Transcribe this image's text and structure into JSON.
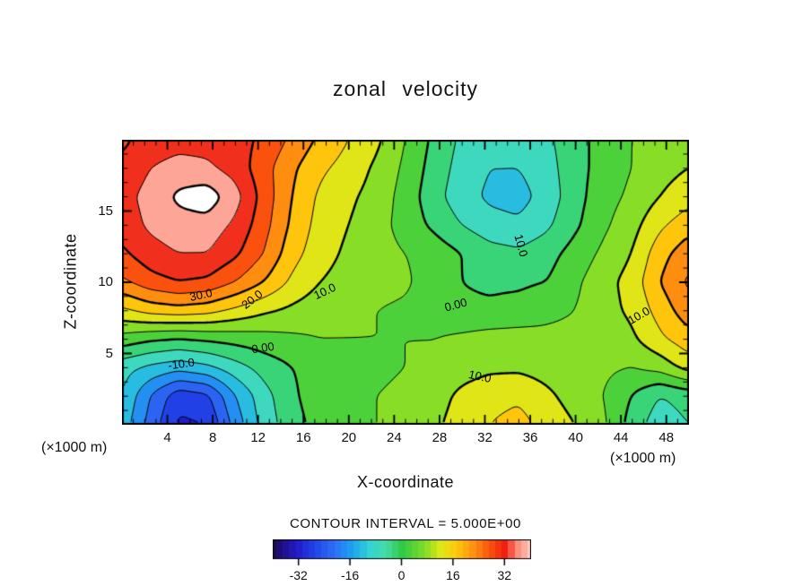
{
  "title": "zonal velocity",
  "axes": {
    "xlabel": "X-coordinate",
    "ylabel": "Z-coordinate",
    "unit_left": "(×1000 m)",
    "unit_right": "(×1000 m)",
    "x_ticks": [
      4,
      8,
      12,
      16,
      20,
      24,
      28,
      32,
      36,
      40,
      44,
      48
    ],
    "y_ticks": [
      5,
      10,
      15
    ],
    "x_range": [
      0,
      50
    ],
    "z_range": [
      0,
      20
    ]
  },
  "contour_note": "CONTOUR INTERVAL = 5.000E+00",
  "colorbar": {
    "range": [
      -40,
      40
    ],
    "labels": [
      "-32",
      "-16",
      "0",
      "16",
      "32"
    ],
    "label_values": [
      -32,
      -16,
      0,
      16,
      32
    ]
  },
  "contour_labels": [
    {
      "text": "30.0",
      "x": 7.0,
      "z": 9.1,
      "rot": -12
    },
    {
      "text": "20.0",
      "x": 11.5,
      "z": 8.8,
      "rot": -38
    },
    {
      "text": "10.0",
      "x": 17.9,
      "z": 9.4,
      "rot": -25
    },
    {
      "text": "0.00",
      "x": 29.4,
      "z": 8.4,
      "rot": -15
    },
    {
      "text": "10.0",
      "x": 35.2,
      "z": 12.6,
      "rot": 75
    },
    {
      "text": "0.00",
      "x": 12.4,
      "z": 5.4,
      "rot": -8
    },
    {
      "text": "-10.0",
      "x": 5.2,
      "z": 4.3,
      "rot": -8
    },
    {
      "text": "10.0",
      "x": 31.6,
      "z": 3.4,
      "rot": 12
    },
    {
      "text": "10.0",
      "x": 45.6,
      "z": 7.7,
      "rot": -30
    }
  ],
  "chart_data": {
    "type": "heatmap",
    "subtype": "filled_contour",
    "title": "zonal velocity",
    "xlabel": "X-coordinate (×1000 m)",
    "ylabel": "Z-coordinate (×1000 m)",
    "contour_interval": 5,
    "x_range": [
      0,
      50
    ],
    "z_range": [
      0,
      20
    ],
    "x": [
      0,
      2.5,
      5,
      7.5,
      10,
      12.5,
      15,
      17.5,
      20,
      22.5,
      25,
      27.5,
      30,
      32.5,
      35,
      37.5,
      40,
      42.5,
      45,
      47.5,
      50
    ],
    "z": [
      0,
      2,
      4,
      6,
      8,
      10,
      12,
      14,
      16,
      18,
      20
    ],
    "values": [
      [
        -12,
        -22,
        -31,
        -30,
        -18,
        -8,
        -2,
        2,
        4,
        5,
        6,
        9,
        12,
        15,
        17,
        13,
        10,
        6,
        -2,
        -8,
        -5
      ],
      [
        -10,
        -20,
        -28,
        -26,
        -15,
        -7,
        -1,
        3,
        4,
        5,
        6,
        8,
        11,
        13,
        14,
        11,
        8,
        5,
        0,
        -5,
        -3
      ],
      [
        -8,
        -11,
        -13,
        -11,
        -7,
        -3,
        0,
        2,
        3,
        4,
        5,
        6,
        8,
        9,
        9,
        8,
        7,
        6,
        5,
        7,
        12
      ],
      [
        3,
        1,
        0,
        1,
        2,
        3,
        4,
        5,
        5,
        5,
        5,
        5,
        6,
        7,
        7,
        6,
        6,
        7,
        9,
        14,
        18
      ],
      [
        14,
        17,
        18,
        17,
        14,
        11,
        9,
        7,
        6,
        5,
        4,
        2,
        1,
        1,
        2,
        4,
        5,
        8,
        11,
        17,
        23
      ],
      [
        24,
        28,
        30,
        29,
        25,
        20,
        14,
        10,
        8,
        7,
        6,
        2,
        0,
        -1,
        -1,
        0,
        4,
        8,
        12,
        20,
        26
      ],
      [
        29,
        33,
        35,
        35,
        31,
        25,
        17,
        12,
        9,
        7,
        5,
        3,
        0,
        -3,
        -4,
        -2,
        2,
        6,
        10,
        18,
        23
      ],
      [
        32,
        36,
        38,
        38,
        34,
        27,
        19,
        13,
        10,
        7,
        3,
        -1,
        -5,
        -8,
        -9,
        -6,
        -1,
        4,
        8,
        14,
        18
      ],
      [
        33,
        37,
        41,
        43,
        37,
        28,
        20,
        14,
        11,
        8,
        3,
        -3,
        -8,
        -11,
        -12,
        -8,
        -2,
        3,
        6,
        10,
        13
      ],
      [
        31,
        35,
        37,
        36,
        33,
        27,
        21,
        16,
        13,
        9,
        4,
        -2,
        -7,
        -10,
        -10,
        -7,
        -2,
        2,
        5,
        8,
        10
      ],
      [
        29,
        32,
        33,
        33,
        32,
        29,
        24,
        19,
        15,
        11,
        5,
        -1,
        -6,
        -8,
        -8,
        -6,
        -2,
        2,
        5,
        7,
        8
      ]
    ],
    "colormap_stops": [
      [
        -40,
        "#1b0b52"
      ],
      [
        -33,
        "#2418c6"
      ],
      [
        -27,
        "#2144e8"
      ],
      [
        -21,
        "#2e6ef6"
      ],
      [
        -15,
        "#1ca6ef"
      ],
      [
        -10,
        "#35d3d2"
      ],
      [
        -5,
        "#46dcab"
      ],
      [
        0,
        "#2fcb45"
      ],
      [
        7,
        "#7fdc27"
      ],
      [
        12,
        "#dde818"
      ],
      [
        17,
        "#ffc90c"
      ],
      [
        22,
        "#ff9410"
      ],
      [
        27,
        "#fb560e"
      ],
      [
        32,
        "#ee220e"
      ],
      [
        36,
        "#fc8f7e"
      ],
      [
        40,
        "#ffc9bd"
      ]
    ]
  }
}
